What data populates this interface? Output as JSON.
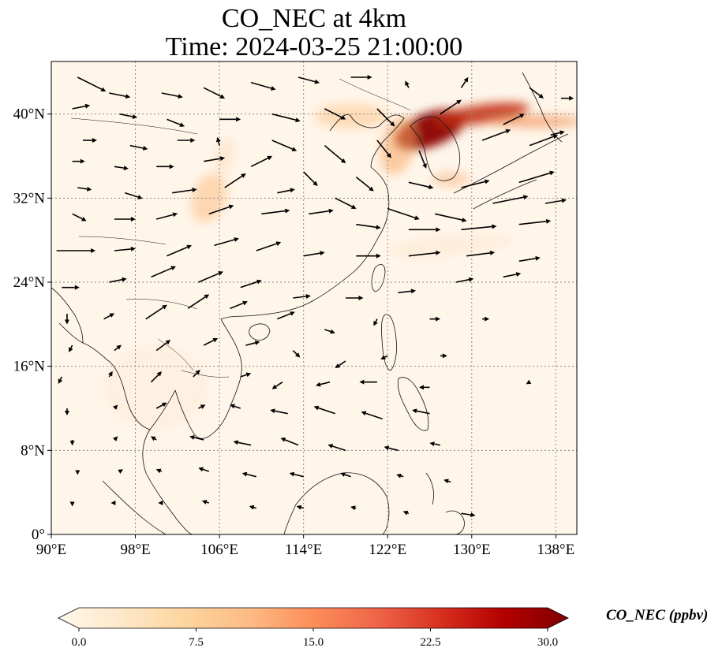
{
  "title_line1": "CO_NEC at 4km",
  "title_line2": "Time: 2024-03-25 21:00:00",
  "map": {
    "lon_range": [
      90,
      140
    ],
    "lat_range": [
      0,
      45
    ],
    "lon_ticks": [
      {
        "value": 90,
        "label": "90°E"
      },
      {
        "value": 98,
        "label": "98°E"
      },
      {
        "value": 106,
        "label": "106°E"
      },
      {
        "value": 114,
        "label": "114°E"
      },
      {
        "value": 122,
        "label": "122°E"
      },
      {
        "value": 130,
        "label": "130°E"
      },
      {
        "value": 138,
        "label": "138°E"
      }
    ],
    "lat_ticks": [
      {
        "value": 0,
        "label": "0°"
      },
      {
        "value": 8,
        "label": "8°N"
      },
      {
        "value": 16,
        "label": "16°N"
      },
      {
        "value": 24,
        "label": "24°N"
      },
      {
        "value": 32,
        "label": "32°N"
      },
      {
        "value": 40,
        "label": "40°N"
      }
    ],
    "gridlines": true,
    "background_color": "#fff6ea",
    "plumes": [
      {
        "lon": 126.0,
        "lat": 38.5,
        "rlon": 3.5,
        "rlat": 1.6,
        "rot": -20,
        "color": "#8b0000",
        "opacity": 0.95
      },
      {
        "lon": 131.0,
        "lat": 40.0,
        "rlon": 4.5,
        "rlat": 0.9,
        "rot": -8,
        "color": "#c22a0b",
        "opacity": 0.85
      },
      {
        "lon": 136.0,
        "lat": 39.3,
        "rlon": 4.5,
        "rlat": 0.6,
        "rot": 0,
        "color": "#f08a4b",
        "opacity": 0.6
      },
      {
        "lon": 123.0,
        "lat": 37.0,
        "rlon": 1.6,
        "rlat": 2.8,
        "rot": 15,
        "color": "#f7a661",
        "opacity": 0.55
      },
      {
        "lon": 118.5,
        "lat": 39.8,
        "rlon": 3.5,
        "rlat": 1.2,
        "rot": 0,
        "color": "#fdd0a2",
        "opacity": 0.7
      },
      {
        "lon": 128.0,
        "lat": 33.8,
        "rlon": 1.8,
        "rlat": 0.7,
        "rot": 0,
        "color": "#f9b27a",
        "opacity": 0.5
      },
      {
        "lon": 105.0,
        "lat": 32.0,
        "rlon": 1.6,
        "rlat": 2.4,
        "rot": 20,
        "color": "#fdc28c",
        "opacity": 0.6
      },
      {
        "lon": 106.5,
        "lat": 36.0,
        "rlon": 0.9,
        "rlat": 1.8,
        "rot": 15,
        "color": "#fee0c2",
        "opacity": 0.6
      },
      {
        "lon": 128.0,
        "lat": 27.5,
        "rlon": 6.0,
        "rlat": 0.9,
        "rot": -5,
        "color": "#fee6cc",
        "opacity": 0.5
      },
      {
        "lon": 100.0,
        "lat": 14.0,
        "rlon": 5.0,
        "rlat": 4.0,
        "rot": 0,
        "color": "#fdebd7",
        "opacity": 0.5
      }
    ],
    "wind_vectors": [
      [
        92.5,
        43.5,
        4.0,
        -2.0
      ],
      [
        95.5,
        42,
        3.0,
        -0.6
      ],
      [
        100.5,
        42,
        3.0,
        -0.6
      ],
      [
        104.5,
        42.5,
        3.0,
        -1.5
      ],
      [
        109,
        43,
        3.5,
        -1.0
      ],
      [
        113.5,
        43.5,
        3.0,
        -0.8
      ],
      [
        118.5,
        43.5,
        3.0,
        0
      ],
      [
        124,
        42.5,
        -0.5,
        1.0
      ],
      [
        129,
        42.5,
        1.0,
        1.5
      ],
      [
        135.5,
        42.5,
        2.0,
        -1.5
      ],
      [
        138.5,
        41.5,
        1.8,
        0
      ],
      [
        92,
        40.5,
        2.5,
        0.5
      ],
      [
        96.5,
        40,
        2.5,
        -0.5
      ],
      [
        101,
        39.5,
        2.5,
        -1.0
      ],
      [
        106,
        39.5,
        3.0,
        0
      ],
      [
        111,
        40,
        4.0,
        -1.0
      ],
      [
        116,
        40.5,
        3.0,
        -1.5
      ],
      [
        121,
        40.5,
        2.5,
        -2.5
      ],
      [
        127,
        40,
        3.0,
        2.0
      ],
      [
        133,
        39,
        3.0,
        1.5
      ],
      [
        137.5,
        38,
        2.0,
        0.5
      ],
      [
        93,
        37.5,
        2.0,
        0
      ],
      [
        97.5,
        37,
        2.5,
        -0.5
      ],
      [
        102,
        37.5,
        2.5,
        0
      ],
      [
        106,
        37,
        -0.3,
        1.2
      ],
      [
        111,
        37.5,
        3.5,
        -1.5
      ],
      [
        116,
        37,
        3.0,
        -2.5
      ],
      [
        121,
        37.5,
        2.0,
        -2.5
      ],
      [
        125,
        36.5,
        1.0,
        -2.5
      ],
      [
        131,
        37.5,
        4.0,
        1.5
      ],
      [
        135.5,
        37,
        4.0,
        1.5
      ],
      [
        92,
        35.5,
        1.8,
        0
      ],
      [
        96,
        35,
        2.0,
        -0.3
      ],
      [
        100,
        35,
        2.5,
        0
      ],
      [
        104.5,
        35.5,
        3.0,
        0.5
      ],
      [
        109,
        35,
        3.0,
        1.5
      ],
      [
        114,
        34.5,
        2.0,
        -2.0
      ],
      [
        119,
        34,
        2.5,
        -2.0
      ],
      [
        124,
        33.5,
        3.5,
        -0.8
      ],
      [
        129,
        33,
        4.0,
        1.0
      ],
      [
        134.5,
        33.5,
        5.0,
        1.5
      ],
      [
        92.5,
        33,
        2.0,
        -0.3
      ],
      [
        97,
        32.5,
        2.5,
        -0.8
      ],
      [
        101.5,
        32.5,
        3.5,
        0.5
      ],
      [
        106.5,
        33,
        3.0,
        2.0
      ],
      [
        111.5,
        32.5,
        2.5,
        0.5
      ],
      [
        117,
        32,
        3.0,
        -1.5
      ],
      [
        122,
        31,
        4.5,
        -1.5
      ],
      [
        126.5,
        30.5,
        4.5,
        -1.0
      ],
      [
        132,
        31.5,
        5.0,
        1.0
      ],
      [
        137,
        31.5,
        3.0,
        0.5
      ],
      [
        92,
        30.5,
        2.0,
        -1.0
      ],
      [
        96,
        30,
        3.0,
        0
      ],
      [
        100,
        30,
        3.0,
        0.8
      ],
      [
        105,
        30.5,
        3.5,
        1.2
      ],
      [
        110,
        30.5,
        4.0,
        0.5
      ],
      [
        114.5,
        30.5,
        3.5,
        0.5
      ],
      [
        119,
        29.5,
        3.5,
        -0.5
      ],
      [
        124,
        29,
        4.5,
        0
      ],
      [
        129,
        29,
        5.0,
        0.5
      ],
      [
        134.5,
        29.5,
        4.5,
        0.5
      ],
      [
        90.5,
        27,
        5.5,
        0
      ],
      [
        96,
        27,
        3.0,
        0.3
      ],
      [
        101,
        26.5,
        3.5,
        1.5
      ],
      [
        105.5,
        27.5,
        3.5,
        1.0
      ],
      [
        109.5,
        27,
        3.5,
        1.2
      ],
      [
        114,
        26.5,
        3.0,
        0.5
      ],
      [
        119,
        26.5,
        3.5,
        0
      ],
      [
        124,
        26.5,
        4.5,
        0.5
      ],
      [
        129.5,
        26.5,
        4.0,
        0.5
      ],
      [
        134.5,
        26,
        3.0,
        0.5
      ],
      [
        91,
        23.5,
        2.5,
        0
      ],
      [
        95.5,
        24,
        2.5,
        0.5
      ],
      [
        99.5,
        24.5,
        3.5,
        1.5
      ],
      [
        104,
        24,
        3.5,
        1.5
      ],
      [
        108,
        23.5,
        3.0,
        1.0
      ],
      [
        113,
        22.5,
        2.5,
        0.3
      ],
      [
        118,
        22.5,
        2.5,
        0
      ],
      [
        123,
        23,
        2.5,
        0.3
      ],
      [
        128.5,
        24,
        2.5,
        0.5
      ],
      [
        133,
        24.5,
        2.5,
        0.5
      ],
      [
        91.5,
        21,
        0,
        -1.5
      ],
      [
        95,
        20.5,
        1.5,
        0.8
      ],
      [
        99,
        20.5,
        3.0,
        2.0
      ],
      [
        103,
        21.5,
        3.0,
        2.0
      ],
      [
        107,
        21.5,
        2.5,
        1.0
      ],
      [
        111.5,
        20.5,
        2.5,
        1.0
      ],
      [
        116,
        19.5,
        1.5,
        -0.5
      ],
      [
        121,
        20.5,
        -0.5,
        -1.0
      ],
      [
        126,
        20.5,
        1.5,
        0
      ],
      [
        131,
        20.5,
        1.0,
        0
      ],
      [
        92,
        18,
        -0.5,
        -1.0
      ],
      [
        96,
        17.5,
        1.0,
        0.8
      ],
      [
        100,
        17.5,
        2.0,
        1.5
      ],
      [
        104.5,
        18,
        2.0,
        1.0
      ],
      [
        108.5,
        18,
        2.0,
        0.5
      ],
      [
        113,
        17.5,
        1.0,
        -1.0
      ],
      [
        118,
        16.5,
        -1.5,
        -1.0
      ],
      [
        122,
        17,
        -1.0,
        -0.5
      ],
      [
        127,
        17,
        1.0,
        0
      ],
      [
        91,
        15,
        -0.5,
        -1.0
      ],
      [
        95.5,
        15,
        0.5,
        0.8
      ],
      [
        99.5,
        14.5,
        1.5,
        1.5
      ],
      [
        103.5,
        15,
        1.0,
        1.0
      ],
      [
        108,
        15,
        1.5,
        0.5
      ],
      [
        112,
        14.5,
        -1.5,
        -1.0
      ],
      [
        116.5,
        14.5,
        -2.0,
        -0.5
      ],
      [
        121,
        14.5,
        -2.5,
        0
      ],
      [
        126,
        14,
        -1.5,
        0
      ],
      [
        135.5,
        14.5,
        -0.5,
        -0.3
      ],
      [
        91.5,
        12,
        0,
        -1.0
      ],
      [
        96,
        12,
        0.5,
        0.5
      ],
      [
        100,
        12,
        1.5,
        0.8
      ],
      [
        104,
        12,
        1.0,
        0.5
      ],
      [
        108,
        12,
        -1.5,
        0.5
      ],
      [
        112.5,
        11.5,
        -2.5,
        0.5
      ],
      [
        117,
        11.5,
        -3.0,
        1.0
      ],
      [
        121.5,
        11,
        -3.0,
        1.0
      ],
      [
        126,
        11.5,
        -2.5,
        0.5
      ],
      [
        92,
        9,
        0,
        -0.8
      ],
      [
        96,
        9,
        0.5,
        0.5
      ],
      [
        100,
        9,
        -0.8,
        0.5
      ],
      [
        104.5,
        9,
        -2.0,
        0.5
      ],
      [
        109,
        8.5,
        -2.5,
        0.5
      ],
      [
        113.5,
        8.5,
        -2.5,
        1.0
      ],
      [
        118,
        8,
        -2.5,
        0.8
      ],
      [
        123,
        8,
        -2.0,
        0.5
      ],
      [
        127,
        8.5,
        -1.5,
        0.3
      ],
      [
        92.5,
        6,
        0,
        -0.5
      ],
      [
        96.5,
        6,
        0.5,
        0.3
      ],
      [
        100.5,
        6,
        -0.8,
        0.3
      ],
      [
        105,
        6,
        -1.5,
        0.5
      ],
      [
        109.5,
        5.5,
        -2.0,
        0.5
      ],
      [
        114,
        5.5,
        -2.0,
        0.5
      ],
      [
        118.5,
        5.5,
        -1.5,
        0.5
      ],
      [
        123.5,
        5.5,
        -1.0,
        0.3
      ],
      [
        128,
        5,
        -1.0,
        0.3
      ],
      [
        92,
        3,
        0,
        -0.5
      ],
      [
        96,
        3,
        -0.5,
        0
      ],
      [
        100.5,
        3,
        -0.5,
        0
      ],
      [
        105,
        3,
        -1.0,
        0.3
      ],
      [
        109.5,
        2.5,
        -1.0,
        0.3
      ],
      [
        114,
        2.5,
        -1.0,
        0.3
      ],
      [
        119,
        2.5,
        -0.8,
        0.2
      ],
      [
        124,
        2,
        -0.8,
        0.3
      ],
      [
        129,
        2,
        2.0,
        -0.3
      ]
    ]
  },
  "colorbar": {
    "label": "CO_NEC (ppbv)",
    "range": [
      0,
      30
    ],
    "ticks": [
      {
        "value": 0,
        "label": "0.0"
      },
      {
        "value": 7.5,
        "label": "7.5"
      },
      {
        "value": 15,
        "label": "15.0"
      },
      {
        "value": 22.5,
        "label": "22.5"
      },
      {
        "value": 30,
        "label": "30.0"
      }
    ],
    "colors": [
      "#fff7ec",
      "#fee8c8",
      "#fdd49e",
      "#fdbb84",
      "#fc8d59",
      "#ef6548",
      "#d7301f",
      "#b30000",
      "#7f0000"
    ]
  }
}
